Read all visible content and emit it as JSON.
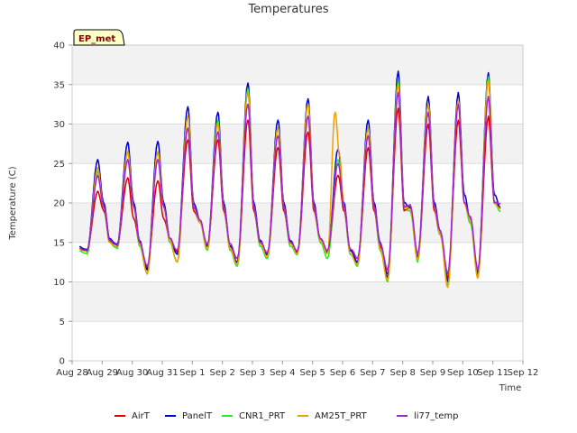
{
  "chart_data": {
    "type": "line",
    "title": "Temperatures",
    "xlabel": "Time",
    "ylabel": "Temperature (C)",
    "badge": "EP_met",
    "ylim": [
      0,
      40
    ],
    "yticks": [
      0,
      5,
      10,
      15,
      20,
      25,
      30,
      35,
      40
    ],
    "xlim": [
      0,
      15
    ],
    "xticks": [
      {
        "v": 0,
        "label": "Aug 28"
      },
      {
        "v": 1,
        "label": "Aug 29"
      },
      {
        "v": 2,
        "label": "Aug 30"
      },
      {
        "v": 3,
        "label": "Aug 31"
      },
      {
        "v": 4,
        "label": "Sep 1"
      },
      {
        "v": 5,
        "label": "Sep 2"
      },
      {
        "v": 6,
        "label": "Sep 3"
      },
      {
        "v": 7,
        "label": "Sep 4"
      },
      {
        "v": 8,
        "label": "Sep 5"
      },
      {
        "v": 9,
        "label": "Sep 6"
      },
      {
        "v": 10,
        "label": "Sep 7"
      },
      {
        "v": 11,
        "label": "Sep 8"
      },
      {
        "v": 12,
        "label": "Sep 9"
      },
      {
        "v": 13,
        "label": "Sep 10"
      },
      {
        "v": 14,
        "label": "Sep 11"
      },
      {
        "v": 15,
        "label": "Sep 12"
      }
    ],
    "grid": true,
    "legend_position": "bottom",
    "series": [
      {
        "name": "AirT",
        "color": "#dd0000",
        "x": [
          0.25,
          0.5,
          0.85,
          1.05,
          1.25,
          1.5,
          1.85,
          2.05,
          2.25,
          2.5,
          2.85,
          3.05,
          3.25,
          3.5,
          3.85,
          4.05,
          4.25,
          4.5,
          4.85,
          5.05,
          5.25,
          5.5,
          5.85,
          6.05,
          6.25,
          6.5,
          6.85,
          7.05,
          7.25,
          7.5,
          7.85,
          8.05,
          8.25,
          8.5,
          8.85,
          9.05,
          9.25,
          9.5,
          9.85,
          10.05,
          10.25,
          10.5,
          10.85,
          11.05,
          11.25,
          11.5,
          11.85,
          12.05,
          12.25,
          12.5,
          12.85,
          13.05,
          13.25,
          13.5,
          13.85,
          14.05,
          14.25
        ],
        "y": [
          14.5,
          14.0,
          21.5,
          19,
          15.2,
          14.7,
          23.2,
          18,
          14.8,
          11.8,
          22.8,
          18,
          15.5,
          13.8,
          28.0,
          19,
          17.5,
          14.5,
          28.0,
          19,
          14.5,
          12.5,
          30.5,
          19,
          15.0,
          13.5,
          27.0,
          19,
          15.0,
          13.8,
          29.0,
          19,
          15.5,
          13.8,
          23.5,
          19,
          14.0,
          12.5,
          27.0,
          19,
          14.5,
          11.0,
          32.0,
          19,
          19.5,
          13.0,
          30.0,
          19,
          16.0,
          10.5,
          30.5,
          20,
          18.0,
          11.0,
          31.0,
          20,
          19.5
        ]
      },
      {
        "name": "PanelT",
        "color": "#0000cc",
        "x": [
          0.25,
          0.5,
          0.85,
          1.05,
          1.25,
          1.5,
          1.85,
          2.05,
          2.25,
          2.5,
          2.85,
          3.05,
          3.25,
          3.5,
          3.85,
          4.05,
          4.25,
          4.5,
          4.85,
          5.05,
          5.25,
          5.5,
          5.85,
          6.05,
          6.25,
          6.5,
          6.85,
          7.05,
          7.25,
          7.5,
          7.85,
          8.05,
          8.25,
          8.5,
          8.85,
          9.05,
          9.25,
          9.5,
          9.85,
          10.05,
          10.25,
          10.5,
          10.85,
          11.05,
          11.25,
          11.5,
          11.85,
          12.05,
          12.25,
          12.5,
          12.85,
          13.05,
          13.25,
          13.5,
          13.85,
          14.05,
          14.25
        ],
        "y": [
          14.5,
          14.0,
          25.5,
          20,
          15.5,
          14.7,
          27.7,
          20,
          15.2,
          11.5,
          27.8,
          20,
          15.5,
          13.5,
          32.2,
          20,
          17.8,
          14.5,
          31.5,
          20,
          14.5,
          12.5,
          35.2,
          20,
          15.2,
          13.5,
          30.5,
          20,
          15.2,
          13.8,
          33.2,
          20,
          15.5,
          13.8,
          26.8,
          20,
          14.0,
          12.5,
          30.5,
          20,
          15.0,
          10.5,
          36.7,
          20,
          19.5,
          13.0,
          33.5,
          20,
          16.5,
          10.0,
          34.0,
          21,
          18.0,
          11.0,
          36.5,
          21,
          19.5
        ]
      },
      {
        "name": "CNR1_PRT",
        "color": "#22ee22",
        "x": [
          0.25,
          0.5,
          0.85,
          1.05,
          1.25,
          1.5,
          1.85,
          2.05,
          2.25,
          2.5,
          2.85,
          3.05,
          3.25,
          3.5,
          3.85,
          4.05,
          4.25,
          4.5,
          4.85,
          5.05,
          5.25,
          5.5,
          5.85,
          6.05,
          6.25,
          6.5,
          6.85,
          7.05,
          7.25,
          7.5,
          7.85,
          8.05,
          8.25,
          8.5,
          8.85,
          9.05,
          9.25,
          9.5,
          9.85,
          10.05,
          10.25,
          10.5,
          10.85,
          11.05,
          11.25,
          11.5,
          11.85,
          12.05,
          12.25,
          12.5,
          12.85,
          13.05,
          13.25,
          13.5,
          13.85,
          14.05,
          14.25
        ],
        "y": [
          14.0,
          13.5,
          24.0,
          19.5,
          15.0,
          14.2,
          26.5,
          19.5,
          14.5,
          11.0,
          26.5,
          19.5,
          15.0,
          12.5,
          31.0,
          19.5,
          17.5,
          14.0,
          30.5,
          19.5,
          14.0,
          12.0,
          34.5,
          19.5,
          14.5,
          13.0,
          29.5,
          19.5,
          14.5,
          13.5,
          32.5,
          19.5,
          15.0,
          13.0,
          25.5,
          19.5,
          13.5,
          12.0,
          29.5,
          19.5,
          14.0,
          10.0,
          35.5,
          19.5,
          19.0,
          12.5,
          32.5,
          19.5,
          16.0,
          9.5,
          33.0,
          20,
          17.5,
          10.5,
          36.0,
          20,
          19.0
        ]
      },
      {
        "name": "AM25T_PRT",
        "color": "#f0a000",
        "x": [
          0.25,
          0.5,
          0.85,
          1.05,
          1.25,
          1.5,
          1.85,
          2.05,
          2.25,
          2.5,
          2.85,
          3.05,
          3.25,
          3.5,
          3.85,
          4.05,
          4.25,
          4.5,
          4.85,
          5.05,
          5.25,
          5.5,
          5.85,
          6.05,
          6.25,
          6.5,
          6.85,
          7.05,
          7.25,
          7.5,
          7.85,
          8.05,
          8.25,
          8.5,
          8.75,
          8.9,
          9.05,
          9.25,
          9.5,
          9.85,
          10.05,
          10.25,
          10.5,
          10.85,
          11.05,
          11.25,
          11.5,
          11.85,
          12.05,
          12.25,
          12.5,
          12.85,
          13.05,
          13.25,
          13.5,
          13.85,
          14.05,
          14.25
        ],
        "y": [
          14.2,
          13.8,
          24.5,
          19.5,
          15.0,
          14.4,
          26.5,
          19.5,
          14.8,
          11.0,
          26.5,
          19.5,
          15.2,
          12.5,
          31.0,
          19.5,
          17.5,
          14.2,
          30.0,
          19.5,
          14.2,
          12.2,
          34.0,
          19.5,
          14.8,
          13.2,
          29.5,
          19.5,
          14.8,
          13.6,
          32.5,
          19.5,
          15.2,
          13.6,
          31.5,
          26.0,
          19.5,
          13.6,
          12.2,
          29.5,
          19.5,
          14.2,
          10.2,
          35.0,
          19.5,
          19.2,
          12.8,
          32.5,
          19.5,
          16.0,
          9.3,
          33.0,
          20,
          17.8,
          10.5,
          35.5,
          20,
          19.2
        ]
      },
      {
        "name": "li77_temp",
        "color": "#aa22cc",
        "x": [
          0.25,
          0.5,
          0.85,
          1.05,
          1.25,
          1.5,
          1.85,
          2.05,
          2.25,
          2.5,
          2.85,
          3.05,
          3.25,
          3.5,
          3.85,
          4.05,
          4.25,
          4.5,
          4.85,
          5.05,
          5.25,
          5.5,
          5.85,
          6.05,
          6.25,
          6.5,
          6.85,
          7.05,
          7.25,
          7.5,
          7.85,
          8.05,
          8.25,
          8.5,
          8.85,
          9.05,
          9.25,
          9.5,
          9.85,
          10.05,
          10.25,
          10.5,
          10.85,
          11.05,
          11.25,
          11.5,
          11.85,
          12.05,
          12.25,
          12.5,
          12.85,
          13.05,
          13.25,
          13.5,
          13.85,
          14.05,
          14.25
        ],
        "y": [
          14.3,
          13.9,
          23.5,
          19.5,
          15.3,
          14.6,
          25.5,
          19.5,
          15.0,
          12.0,
          25.5,
          19.5,
          15.5,
          14.0,
          29.5,
          19.5,
          17.8,
          14.8,
          29.0,
          19.5,
          14.8,
          13.0,
          32.5,
          19.5,
          15.0,
          13.8,
          28.5,
          19.5,
          15.0,
          14.0,
          31.0,
          19.5,
          15.5,
          14.0,
          25.0,
          19.5,
          14.2,
          13.0,
          28.5,
          19.5,
          14.8,
          11.5,
          34.0,
          19.5,
          19.8,
          13.5,
          31.5,
          19.5,
          16.5,
          11.0,
          32.5,
          20,
          18.3,
          11.5,
          33.5,
          20,
          20.0
        ]
      }
    ]
  }
}
